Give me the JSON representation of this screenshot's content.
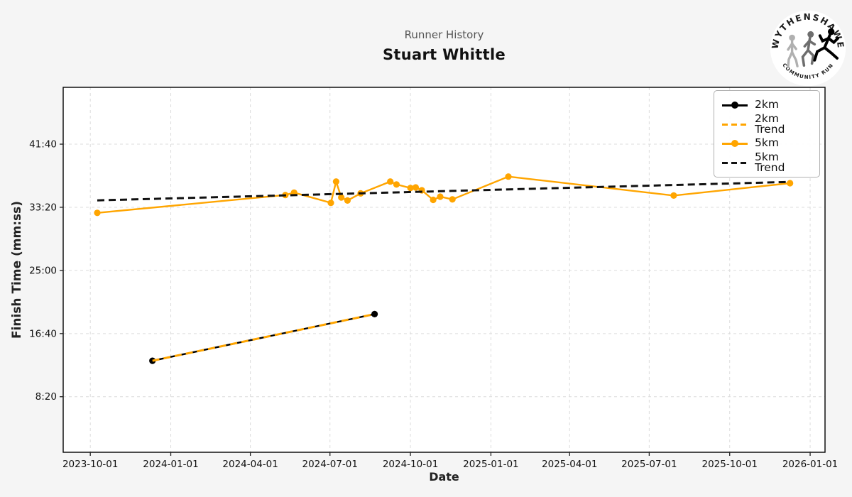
{
  "header": {
    "subtitle": "Runner History",
    "title": "Stuart Whittle"
  },
  "logo": {
    "arc_top": "WYTHENSHAWE",
    "arc_bottom": "COMMUNITY RUN"
  },
  "axes": {
    "x_label": "Date",
    "y_label": "Finish Time (mm:ss)"
  },
  "colors": {
    "orange": "#FFA500",
    "black": "#000000",
    "trend_black": "#111111",
    "grid": "#dcdcdc",
    "figure_bg": "#f5f5f5",
    "plot_bg": "#ffffff"
  },
  "legend": {
    "position": "upper right",
    "items": [
      {
        "label": "2km",
        "color": "#000000",
        "dashed": false,
        "marker": true
      },
      {
        "label": "2km Trend",
        "color": "#FFA500",
        "dashed": true,
        "marker": false
      },
      {
        "label": "5km",
        "color": "#FFA500",
        "dashed": false,
        "marker": true
      },
      {
        "label": "5km Trend",
        "color": "#111111",
        "dashed": true,
        "marker": false
      }
    ]
  },
  "chart_data": {
    "type": "line",
    "title": "Runner History",
    "subtitle": "Stuart Whittle",
    "xlabel": "Date",
    "ylabel": "Finish Time (mm:ss)",
    "grid": true,
    "legend_position": "upper right",
    "x_axis": {
      "min": "2023-08-31",
      "max": "2026-01-18",
      "ticks": [
        "2023-10-01",
        "2024-01-01",
        "2024-04-01",
        "2024-07-01",
        "2024-10-01",
        "2025-01-01",
        "2025-04-01",
        "2025-07-01",
        "2025-10-01",
        "2026-01-01"
      ]
    },
    "y_axis": {
      "min_seconds": 60,
      "max_seconds": 2950,
      "ticks": [
        {
          "seconds": 500,
          "label": "8:20"
        },
        {
          "seconds": 1000,
          "label": "16:40"
        },
        {
          "seconds": 1500,
          "label": "25:00"
        },
        {
          "seconds": 2000,
          "label": "33:20"
        },
        {
          "seconds": 2500,
          "label": "41:40"
        }
      ]
    },
    "series": [
      {
        "name": "2km",
        "color": "#000000",
        "dashed": false,
        "marker": true,
        "points": [
          {
            "date": "2023-12-11",
            "time": "13:05"
          },
          {
            "date": "2024-08-21",
            "time": "19:14"
          }
        ]
      },
      {
        "name": "2km Trend",
        "color": "#FFA500",
        "dashed": true,
        "marker": false,
        "points": [
          {
            "date": "2023-12-11",
            "time": "13:05"
          },
          {
            "date": "2024-08-21",
            "time": "19:14"
          }
        ]
      },
      {
        "name": "5km",
        "color": "#FFA500",
        "dashed": false,
        "marker": true,
        "points": [
          {
            "date": "2023-10-09",
            "time": "32:36"
          },
          {
            "date": "2024-05-11",
            "time": "34:57"
          },
          {
            "date": "2024-05-21",
            "time": "35:16"
          },
          {
            "date": "2024-07-02",
            "time": "33:55"
          },
          {
            "date": "2024-07-08",
            "time": "36:44"
          },
          {
            "date": "2024-07-14",
            "time": "34:38"
          },
          {
            "date": "2024-07-21",
            "time": "34:14"
          },
          {
            "date": "2024-08-05",
            "time": "35:10"
          },
          {
            "date": "2024-09-08",
            "time": "36:44"
          },
          {
            "date": "2024-09-15",
            "time": "36:21"
          },
          {
            "date": "2024-10-01",
            "time": "35:53"
          },
          {
            "date": "2024-10-07",
            "time": "35:57"
          },
          {
            "date": "2024-10-14",
            "time": "35:35"
          },
          {
            "date": "2024-10-27",
            "time": "34:19"
          },
          {
            "date": "2024-11-04",
            "time": "34:44"
          },
          {
            "date": "2024-11-18",
            "time": "34:23"
          },
          {
            "date": "2025-01-21",
            "time": "37:23"
          },
          {
            "date": "2025-07-29",
            "time": "34:53"
          },
          {
            "date": "2025-12-09",
            "time": "36:31"
          }
        ]
      },
      {
        "name": "5km Trend",
        "color": "#111111",
        "dashed": true,
        "marker": false,
        "points": [
          {
            "date": "2023-10-09",
            "time": "34:15"
          },
          {
            "date": "2025-12-09",
            "time": "36:41"
          }
        ]
      }
    ]
  }
}
